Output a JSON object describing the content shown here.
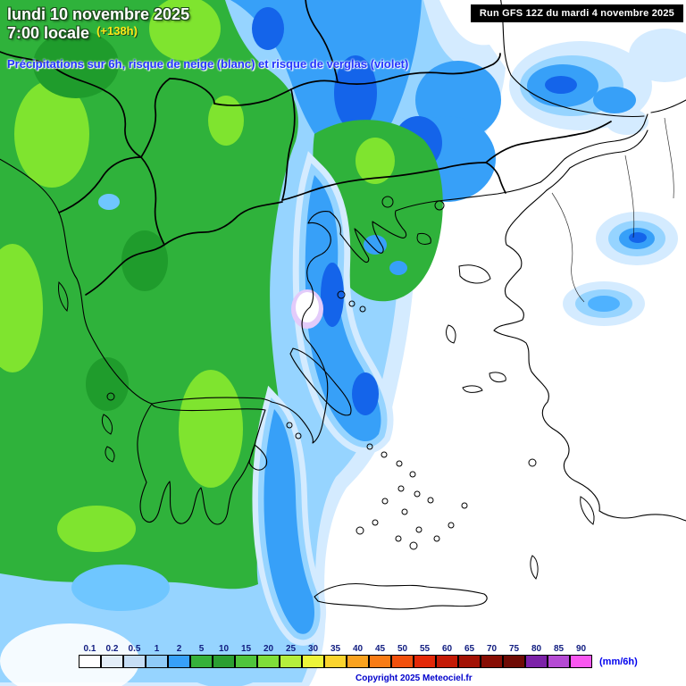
{
  "header": {
    "date": "lundi 10 novembre 2025",
    "time": "7:00 locale",
    "forecast_offset": "(+138h)",
    "subtitle": "Précipitations sur 6h, risque de neige (blanc) et risque de verglas (violet)",
    "run": "Run GFS 12Z du mardi 4 novembre 2025"
  },
  "legend": {
    "unit": "(mm/6h)",
    "stops": [
      {
        "value": "0.1",
        "color": "#FFFFFF"
      },
      {
        "value": "0.2",
        "color": "#E4EEF8"
      },
      {
        "value": "0.5",
        "color": "#C6DEF5"
      },
      {
        "value": "1",
        "color": "#8FCBF8"
      },
      {
        "value": "2",
        "color": "#37A0F8"
      },
      {
        "value": "5",
        "color": "#36B13A"
      },
      {
        "value": "10",
        "color": "#2B9F31"
      },
      {
        "value": "15",
        "color": "#4FC43B"
      },
      {
        "value": "20",
        "color": "#7FDE3A"
      },
      {
        "value": "25",
        "color": "#B5EF3C"
      },
      {
        "value": "30",
        "color": "#EDF53A"
      },
      {
        "value": "35",
        "color": "#FBD42E"
      },
      {
        "value": "40",
        "color": "#FAA21F"
      },
      {
        "value": "45",
        "color": "#F97C16"
      },
      {
        "value": "50",
        "color": "#F2500D"
      },
      {
        "value": "55",
        "color": "#E42808"
      },
      {
        "value": "60",
        "color": "#C41A06"
      },
      {
        "value": "65",
        "color": "#A31205"
      },
      {
        "value": "70",
        "color": "#870D04"
      },
      {
        "value": "75",
        "color": "#6E0A04"
      },
      {
        "value": "80",
        "color": "#7C22A8"
      },
      {
        "value": "85",
        "color": "#B54AD4"
      },
      {
        "value": "90",
        "color": "#F957F0"
      }
    ]
  },
  "footer": {
    "copyright": "Copyright 2025 Meteociel.fr"
  }
}
